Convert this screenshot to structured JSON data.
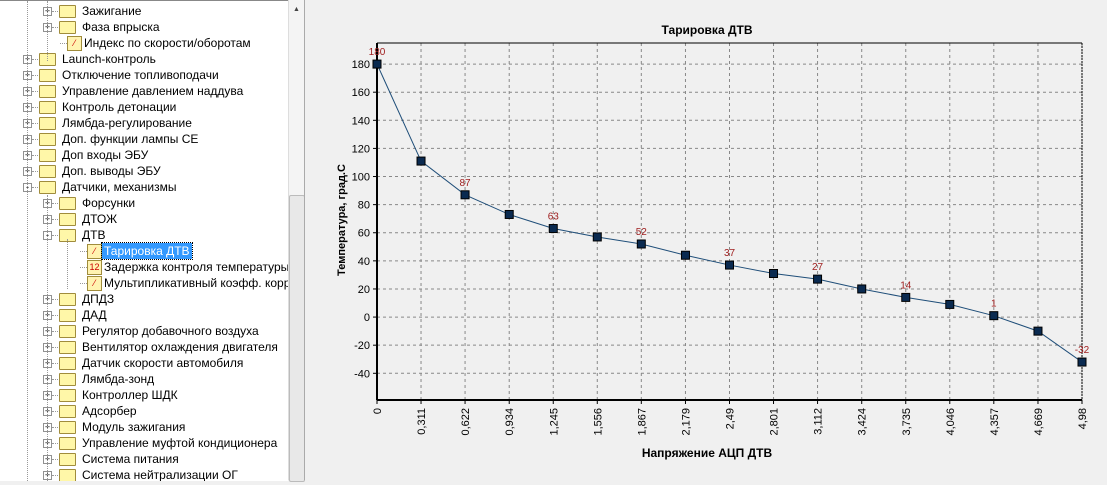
{
  "tree": [
    {
      "label": "Зажигание",
      "level": 1,
      "type": "folder",
      "expand": "+"
    },
    {
      "label": "Фаза впрыска",
      "level": 1,
      "type": "folder",
      "expand": "+"
    },
    {
      "label": "Индекс по скорости/оборотам",
      "level": 1,
      "type": "chart"
    },
    {
      "label": "Launch-контроль",
      "level": 0,
      "type": "folder",
      "expand": "+"
    },
    {
      "label": "Отключение топливоподачи",
      "level": 0,
      "type": "folder",
      "expand": "+"
    },
    {
      "label": "Управление давлением наддува",
      "level": 0,
      "type": "folder",
      "expand": "+"
    },
    {
      "label": "Контроль детонации",
      "level": 0,
      "type": "folder",
      "expand": "+"
    },
    {
      "label": "Лямбда-регулирование",
      "level": 0,
      "type": "folder",
      "expand": "+"
    },
    {
      "label": "Доп. функции лампы CE",
      "level": 0,
      "type": "folder",
      "expand": "+"
    },
    {
      "label": "Доп входы ЭБУ",
      "level": 0,
      "type": "folder",
      "expand": "+"
    },
    {
      "label": "Доп. выводы ЭБУ",
      "level": 0,
      "type": "folder",
      "expand": "+"
    },
    {
      "label": "Датчики, механизмы",
      "level": 0,
      "type": "folder",
      "expand": "-"
    },
    {
      "label": "Форсунки",
      "level": 1,
      "type": "folder",
      "expand": "+"
    },
    {
      "label": "ДТОЖ",
      "level": 1,
      "type": "folder",
      "expand": "+"
    },
    {
      "label": "ДТВ",
      "level": 1,
      "type": "folder",
      "expand": "-"
    },
    {
      "label": "Тарировка ДТВ",
      "level": 2,
      "type": "chart",
      "selected": true
    },
    {
      "label": "Задержка контроля температуры во",
      "level": 2,
      "type": "value",
      "icon_text": "12"
    },
    {
      "label": "Мультипликативный коэфф. коррекц",
      "level": 2,
      "type": "chart"
    },
    {
      "label": "ДПДЗ",
      "level": 1,
      "type": "folder",
      "expand": "+"
    },
    {
      "label": "ДАД",
      "level": 1,
      "type": "folder",
      "expand": "+"
    },
    {
      "label": "Регулятор добавочного воздуха",
      "level": 1,
      "type": "folder",
      "expand": "+"
    },
    {
      "label": "Вентилятор охлаждения двигателя",
      "level": 1,
      "type": "folder",
      "expand": "+"
    },
    {
      "label": "Датчик скорости автомобиля",
      "level": 1,
      "type": "folder",
      "expand": "+"
    },
    {
      "label": "Лямбда-зонд",
      "level": 1,
      "type": "folder",
      "expand": "+"
    },
    {
      "label": "Контроллер ШДК",
      "level": 1,
      "type": "folder",
      "expand": "+"
    },
    {
      "label": "Адсорбер",
      "level": 1,
      "type": "folder",
      "expand": "+"
    },
    {
      "label": "Модуль зажигания",
      "level": 1,
      "type": "folder",
      "expand": "+"
    },
    {
      "label": "Управление муфтой кондиционера",
      "level": 1,
      "type": "folder",
      "expand": "+"
    },
    {
      "label": "Система питания",
      "level": 1,
      "type": "folder",
      "expand": "+"
    },
    {
      "label": "Система нейтрализации ОГ",
      "level": 1,
      "type": "folder",
      "expand": "+"
    }
  ],
  "colors": {
    "line": "#1f4e79",
    "marker": "#0a2a50",
    "label": "#a02020",
    "selection": "#3399ff"
  },
  "chart_data": {
    "type": "line",
    "title": "Тарировка ДТВ",
    "xlabel": "Напряжение АЦП ДТВ",
    "ylabel": "Температура, град.С",
    "x": [
      0,
      0.311,
      0.622,
      0.934,
      1.245,
      1.556,
      1.867,
      2.179,
      2.49,
      2.801,
      3.112,
      3.424,
      3.735,
      4.046,
      4.357,
      4.669,
      4.98
    ],
    "x_tick_labels": [
      "0",
      "0,311",
      "0,622",
      "0,934",
      "1,245",
      "1,556",
      "1,867",
      "2,179",
      "2,49",
      "2,801",
      "3,112",
      "3,424",
      "3,735",
      "4,046",
      "4,357",
      "4,669",
      "4,98"
    ],
    "y": [
      180,
      111,
      87,
      73,
      63,
      57,
      52,
      44,
      37,
      31,
      27,
      20,
      14,
      9,
      1,
      -10,
      -32
    ],
    "data_labels": [
      "180",
      "",
      "87",
      "",
      "63",
      "",
      "52",
      "",
      "37",
      "",
      "27",
      "",
      "14",
      "",
      "1",
      "",
      "-32"
    ],
    "y_ticks": [
      -40,
      -20,
      0,
      20,
      40,
      60,
      80,
      100,
      120,
      140,
      160,
      180
    ],
    "ylim": [
      -59,
      195
    ],
    "xlim": [
      0,
      4.98
    ],
    "grid": true
  }
}
